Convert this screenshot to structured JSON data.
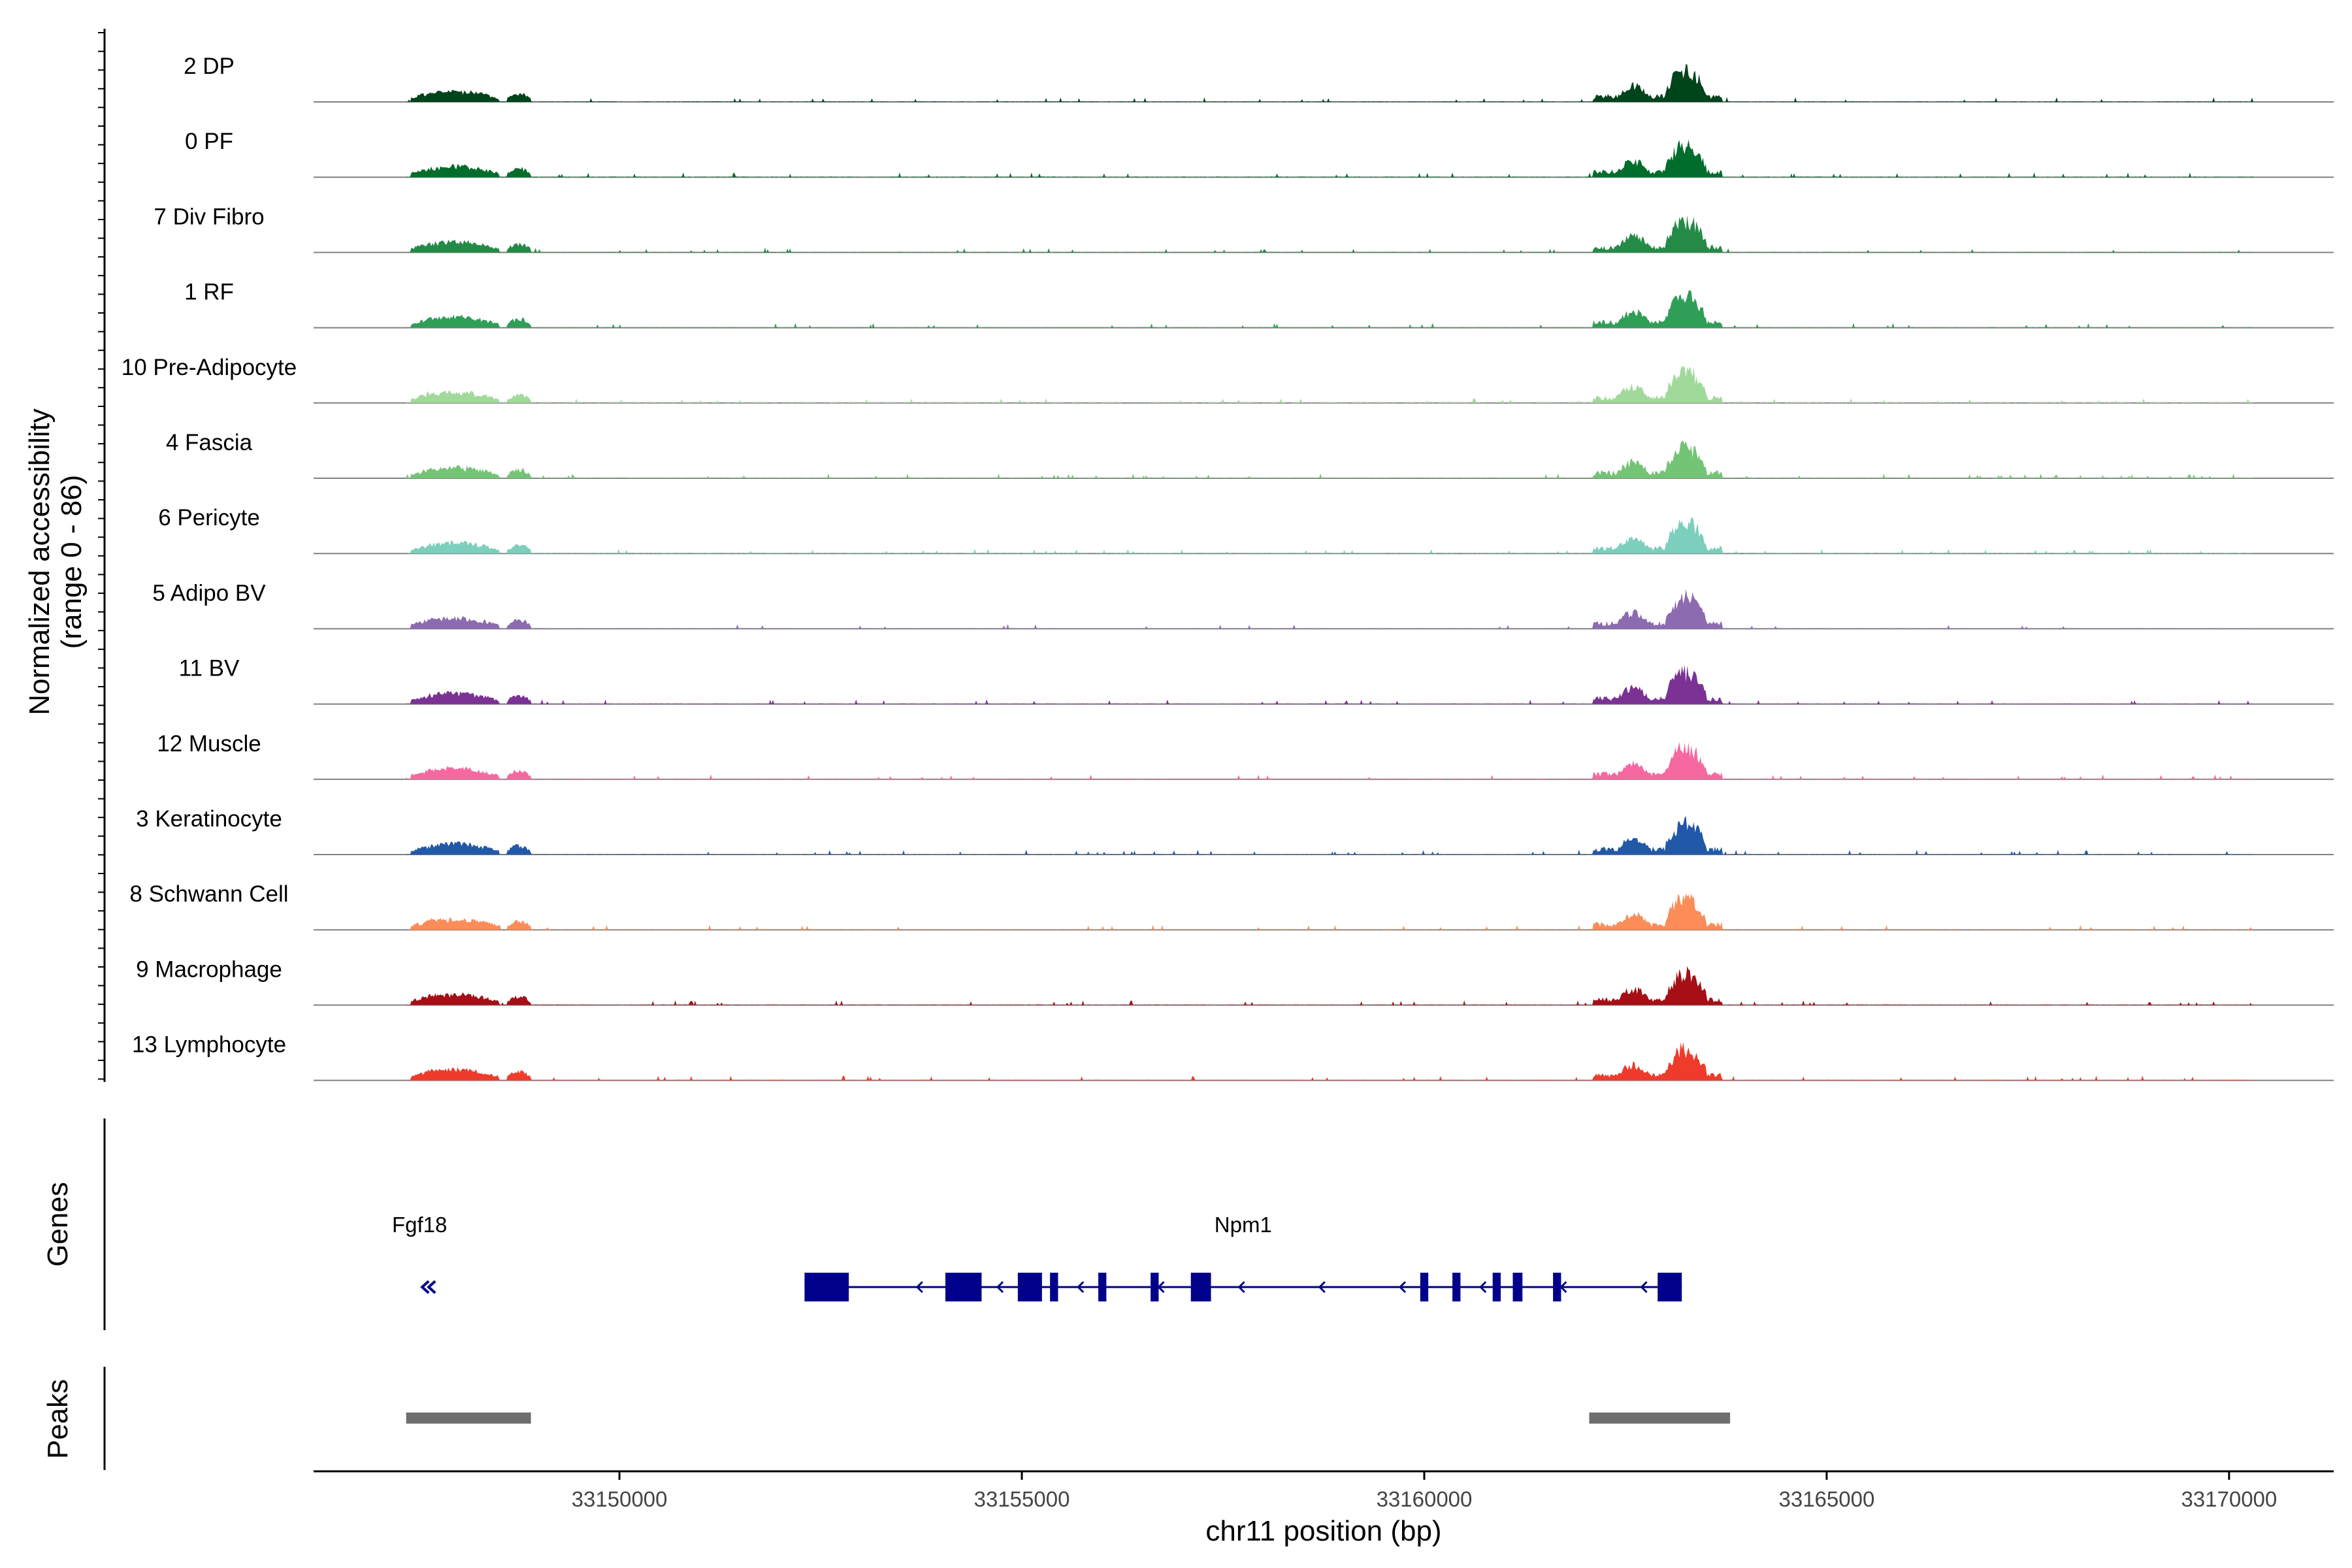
{
  "chart_data": {
    "type": "area",
    "title": "",
    "chromosome": "chr11",
    "xlabel": "chr11 position (bp)",
    "ylabel_line1": "Normalized accessibility",
    "ylabel_line2": "(range 0 - 86)",
    "y_range": [
      0,
      86
    ],
    "xlim": [
      33146200,
      33171300
    ],
    "xticks": [
      33150000,
      33155000,
      33160000,
      33165000,
      33170000
    ],
    "xtick_labels": [
      "33150000",
      "33155000",
      "33160000",
      "33165000",
      "33170000"
    ],
    "series": [
      {
        "name": "2 DP",
        "color": "#00441b"
      },
      {
        "name": "0 PF",
        "color": "#006d2c"
      },
      {
        "name": "7 Div Fibro",
        "color": "#238b45"
      },
      {
        "name": "1 RF",
        "color": "#2f9e57"
      },
      {
        "name": "10 Pre-Adipocyte",
        "color": "#a1d99b"
      },
      {
        "name": "4 Fascia",
        "color": "#74c476"
      },
      {
        "name": "6 Pericyte",
        "color": "#7ccfbc"
      },
      {
        "name": "5 Adipo BV",
        "color": "#8c6bb1"
      },
      {
        "name": "11 BV",
        "color": "#7b3294"
      },
      {
        "name": "12 Muscle",
        "color": "#f768a1"
      },
      {
        "name": "3 Keratinocyte",
        "color": "#2158a8"
      },
      {
        "name": "8 Schwann Cell",
        "color": "#fc8d59"
      },
      {
        "name": "9 Macrophage",
        "color": "#a50f15"
      },
      {
        "name": "13 Lymphocyte",
        "color": "#ef3b2c"
      }
    ],
    "peak_regions": [
      {
        "start": 33147400,
        "end": 33148500,
        "height": 0.3
      },
      {
        "start": 33148600,
        "end": 33148900,
        "height": 0.25
      },
      {
        "start": 33162400,
        "end": 33162800,
        "height": 0.45
      },
      {
        "start": 33163000,
        "end": 33163500,
        "height": 0.9
      }
    ],
    "genes_panel_label": "Genes",
    "genes": [
      {
        "name": "Fgf18",
        "strand": "-",
        "start": 33147500,
        "end": 33147700
      },
      {
        "name": "Npm1",
        "strand": "-",
        "start": 33152300,
        "end": 33163200,
        "exons": [
          [
            33152300,
            33152850
          ],
          [
            33154050,
            33154500
          ],
          [
            33154950,
            33155250
          ],
          [
            33155350,
            33155450
          ],
          [
            33155950,
            33156050
          ],
          [
            33156600,
            33156700
          ],
          [
            33157100,
            33157350
          ],
          [
            33159950,
            33160050
          ],
          [
            33160350,
            33160450
          ],
          [
            33160850,
            33160950
          ],
          [
            33161100,
            33161220
          ],
          [
            33161600,
            33161700
          ],
          [
            33162900,
            33163200
          ]
        ]
      }
    ],
    "peaks_panel_label": "Peaks",
    "peaks": [
      {
        "start": 33147350,
        "end": 33148900
      },
      {
        "start": 33162050,
        "end": 33163800
      }
    ],
    "peak_color": "#6e6e6e"
  }
}
